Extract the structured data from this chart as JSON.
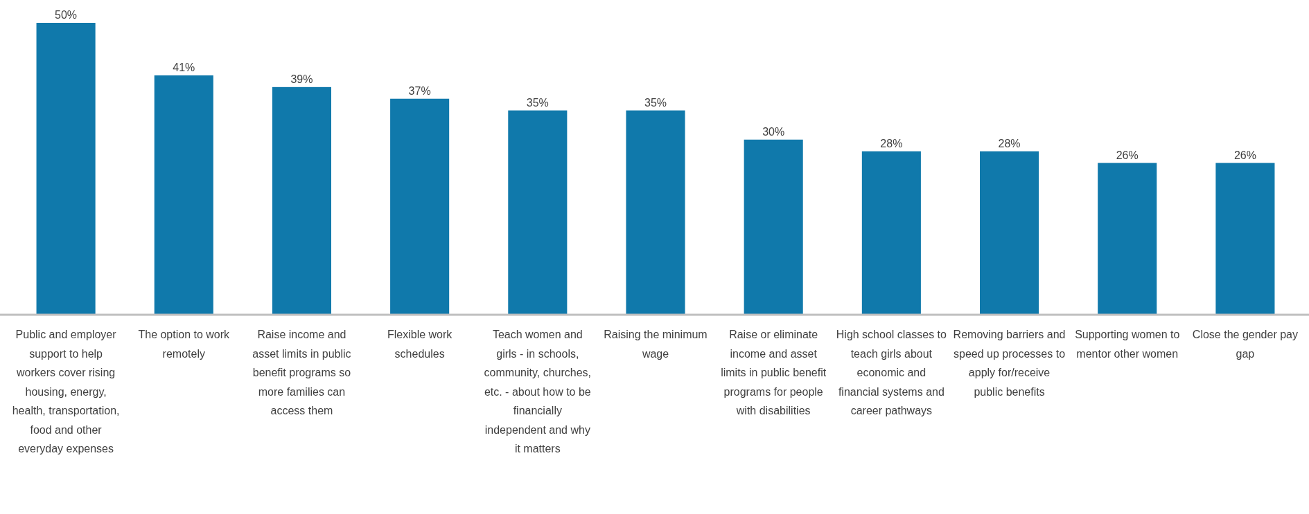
{
  "chart_data": {
    "type": "bar",
    "categories": [
      "Public and employer support to help workers cover rising housing, energy, health, transportation, food and other everyday expenses",
      "The option to work remotely",
      "Raise income and asset limits in public benefit programs so more families can access them",
      "Flexible work schedules",
      "Teach women and girls - in schools, community, churches, etc. - about how to be financially independent and why it matters",
      "Raising the minimum wage",
      "Raise or eliminate income and asset limits in public benefit programs for people with disabilities",
      "High school classes to teach girls about economic and financial systems and career pathways",
      "Removing barriers and speed up processes to apply for/receive public benefits",
      "Supporting women to mentor other women",
      "Close the gender pay gap"
    ],
    "values": [
      50,
      41,
      39,
      37,
      35,
      35,
      30,
      28,
      28,
      26,
      26
    ],
    "value_labels": [
      "50%",
      "41%",
      "39%",
      "37%",
      "35%",
      "35%",
      "30%",
      "28%",
      "28%",
      "26%",
      "26%"
    ],
    "color": "#1079ab",
    "tick_labels": "x"
  }
}
